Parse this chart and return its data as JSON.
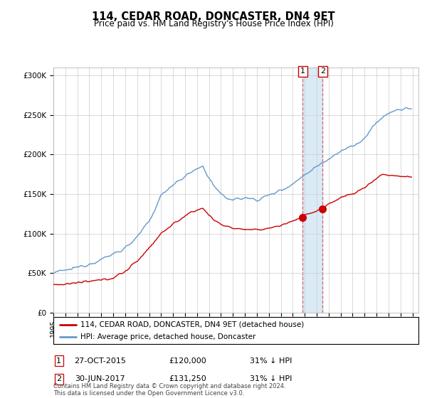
{
  "title": "114, CEDAR ROAD, DONCASTER, DN4 9ET",
  "subtitle": "Price paid vs. HM Land Registry's House Price Index (HPI)",
  "legend_line1": "114, CEDAR ROAD, DONCASTER, DN4 9ET (detached house)",
  "legend_line2": "HPI: Average price, detached house, Doncaster",
  "footnote": "Contains HM Land Registry data © Crown copyright and database right 2024.\nThis data is licensed under the Open Government Licence v3.0.",
  "transaction1_label": "1",
  "transaction1_date": "27-OCT-2015",
  "transaction1_price": "£120,000",
  "transaction1_hpi": "31% ↓ HPI",
  "transaction2_label": "2",
  "transaction2_date": "30-JUN-2017",
  "transaction2_price": "£131,250",
  "transaction2_hpi": "31% ↓ HPI",
  "t1_year": 2015.83,
  "t2_year": 2017.5,
  "t1_price": 120000,
  "t2_price": 131250,
  "property_color": "#cc0000",
  "hpi_color": "#6699cc",
  "shaded_region_color": "#daeaf7",
  "ylim": [
    0,
    310000
  ],
  "yticks": [
    0,
    50000,
    100000,
    150000,
    200000,
    250000,
    300000
  ],
  "ytick_labels": [
    "£0",
    "£50K",
    "£100K",
    "£150K",
    "£200K",
    "£250K",
    "£300K"
  ],
  "bg_color": "#ffffff"
}
